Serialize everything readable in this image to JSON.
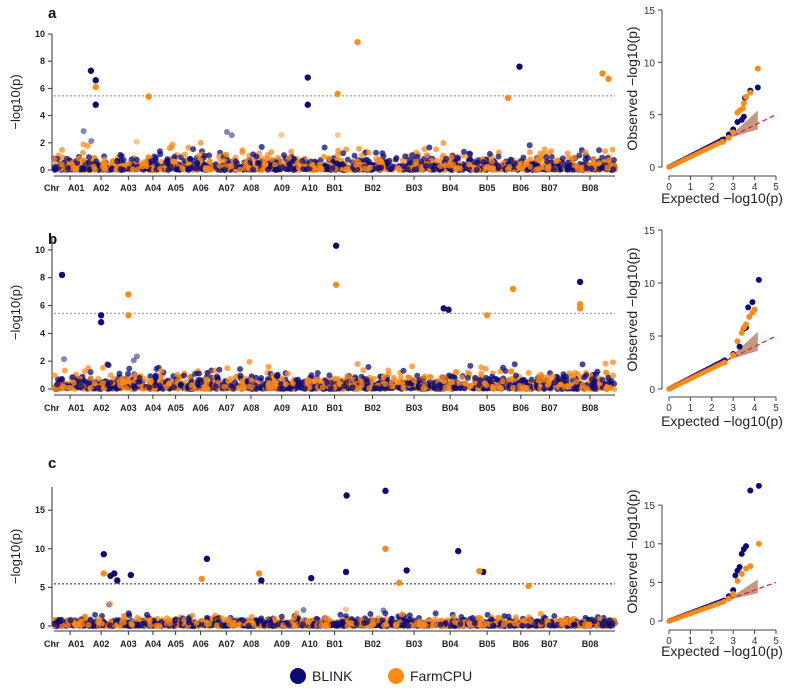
{
  "legend": {
    "blink": "BLINK",
    "farmcpu": "FarmCPU"
  },
  "colors": {
    "blink": "#0b0b78",
    "farmcpu": "#ff8a14",
    "threshold": "#555555",
    "qq_line": "#e02020",
    "qq_band": "#a0522d"
  },
  "chart_data": [
    {
      "panel": "a",
      "type": "scatter",
      "subtype": "manhattan",
      "ylabel": "−log10(p)",
      "chr_axis_label": "Chr",
      "ylim": [
        0,
        10
      ],
      "yticks": [
        0,
        2,
        4,
        6,
        8,
        10
      ],
      "threshold": 5.45,
      "chromosomes": [
        [
          "A01",
          6
        ],
        [
          "A02",
          5
        ],
        [
          "A03",
          4.6
        ],
        [
          "A04",
          4
        ],
        [
          "A05",
          3.9
        ],
        [
          "A06",
          4.8
        ],
        [
          "A07",
          4.3
        ],
        [
          "A08",
          4.3
        ],
        [
          "A09",
          6.6
        ],
        [
          "A10",
          3.2
        ],
        [
          "B01",
          5.6
        ],
        [
          "B02",
          8
        ],
        [
          "B03",
          6.9
        ],
        [
          "B04",
          6
        ],
        [
          "B05",
          7.2
        ],
        [
          "B06",
          4.8
        ],
        [
          "B07",
          5.3
        ],
        [
          "B08",
          9.3
        ]
      ],
      "significant": {
        "blink": [
          [
            "A02",
            0.12,
            7.3
          ],
          [
            "A02",
            0.3,
            6.6
          ],
          [
            "A02",
            0.3,
            4.8
          ],
          [
            "A10",
            0.4,
            6.8
          ],
          [
            "A10",
            0.4,
            4.8
          ],
          [
            "B06",
            0.45,
            7.6
          ]
        ],
        "farmcpu": [
          [
            "A02",
            0.3,
            6.1
          ],
          [
            "A04",
            0.3,
            5.4
          ],
          [
            "B01",
            0.6,
            5.6
          ],
          [
            "B02",
            0.15,
            9.4
          ],
          [
            "B06",
            0.0,
            5.3
          ],
          [
            "B08",
            0.75,
            7.1
          ],
          [
            "B08",
            0.87,
            6.7
          ]
        ]
      },
      "qq": {
        "xlabel": "Expected −log10(p)",
        "ylabel": "Observed −log10(p)",
        "xlim": [
          0,
          5
        ],
        "ylim": [
          0,
          15
        ],
        "xticks": [
          0,
          1,
          2,
          3,
          4,
          5
        ],
        "yticks": [
          0,
          5,
          10,
          15
        ],
        "blink_tail": [
          [
            2.5,
            2.6
          ],
          [
            2.8,
            3.1
          ],
          [
            3.0,
            3.6
          ],
          [
            3.2,
            4.3
          ],
          [
            3.4,
            4.5
          ],
          [
            3.5,
            4.8
          ],
          [
            3.55,
            6.6
          ],
          [
            3.8,
            7.3
          ],
          [
            4.15,
            7.6
          ]
        ],
        "farmcpu_tail": [
          [
            2.5,
            2.4
          ],
          [
            2.8,
            2.8
          ],
          [
            3.0,
            3.3
          ],
          [
            3.2,
            5.2
          ],
          [
            3.3,
            5.4
          ],
          [
            3.45,
            5.6
          ],
          [
            3.5,
            6.1
          ],
          [
            3.6,
            6.7
          ],
          [
            3.8,
            7.1
          ],
          [
            4.15,
            9.4
          ]
        ]
      }
    },
    {
      "panel": "b",
      "type": "scatter",
      "subtype": "manhattan",
      "ylabel": "−log10(p)",
      "chr_axis_label": "Chr",
      "ylim": [
        0,
        11
      ],
      "yticks": [
        0,
        2,
        4,
        6,
        8,
        10
      ],
      "threshold": 5.45,
      "chromosomes": [
        [
          "A01",
          6
        ],
        [
          "A02",
          5
        ],
        [
          "A03",
          4.6
        ],
        [
          "A04",
          4
        ],
        [
          "A05",
          3.9
        ],
        [
          "A06",
          4.8
        ],
        [
          "A07",
          4.3
        ],
        [
          "A08",
          4.3
        ],
        [
          "A09",
          6.6
        ],
        [
          "A10",
          3.2
        ],
        [
          "B01",
          5.6
        ],
        [
          "B02",
          8
        ],
        [
          "B03",
          6.9
        ],
        [
          "B04",
          6
        ],
        [
          "B05",
          7.2
        ],
        [
          "B06",
          4.8
        ],
        [
          "B07",
          5.3
        ],
        [
          "B08",
          9.3
        ]
      ],
      "significant": {
        "blink": [
          [
            "A01",
            0.25,
            8.2
          ],
          [
            "A02",
            0.5,
            5.3
          ],
          [
            "A02",
            0.5,
            4.8
          ],
          [
            "B01",
            0.55,
            10.3
          ],
          [
            "B04",
            0.3,
            5.8
          ],
          [
            "B04",
            0.45,
            5.7
          ],
          [
            "B08",
            0.3,
            7.7
          ]
        ],
        "farmcpu": [
          [
            "A03",
            0.5,
            6.8
          ],
          [
            "A03",
            0.5,
            5.3
          ],
          [
            "B01",
            0.55,
            7.5
          ],
          [
            "B05",
            0.5,
            5.3
          ],
          [
            "B06",
            0.2,
            7.2
          ],
          [
            "B08",
            0.3,
            6.1
          ],
          [
            "B08",
            0.3,
            5.8
          ]
        ]
      },
      "qq": {
        "xlabel": "Expected −log10(p)",
        "ylabel": "Observed −log10(p)",
        "xlim": [
          0,
          5
        ],
        "ylim": [
          0,
          15
        ],
        "xticks": [
          0,
          1,
          2,
          3,
          4,
          5
        ],
        "yticks": [
          0,
          5,
          10,
          15
        ],
        "blink_tail": [
          [
            2.6,
            2.7
          ],
          [
            3.0,
            3.3
          ],
          [
            3.3,
            4.0
          ],
          [
            3.5,
            5.7
          ],
          [
            3.6,
            5.8
          ],
          [
            3.7,
            7.7
          ],
          [
            3.9,
            8.2
          ],
          [
            4.2,
            10.3
          ]
        ],
        "farmcpu_tail": [
          [
            2.6,
            2.5
          ],
          [
            3.0,
            3.2
          ],
          [
            3.2,
            4.5
          ],
          [
            3.4,
            5.3
          ],
          [
            3.5,
            5.8
          ],
          [
            3.6,
            6.1
          ],
          [
            3.75,
            6.8
          ],
          [
            3.9,
            7.2
          ],
          [
            4.0,
            7.5
          ]
        ]
      }
    },
    {
      "panel": "c",
      "type": "scatter",
      "subtype": "manhattan",
      "ylabel": "−log10(p)",
      "chr_axis_label": "Chr",
      "ylim": [
        0,
        18
      ],
      "yticks": [
        0,
        5,
        10,
        15
      ],
      "threshold": 5.45,
      "chromosomes": [
        [
          "A01",
          6
        ],
        [
          "A02",
          5
        ],
        [
          "A03",
          4.6
        ],
        [
          "A04",
          4
        ],
        [
          "A05",
          3.9
        ],
        [
          "A06",
          4.8
        ],
        [
          "A07",
          4.3
        ],
        [
          "A08",
          4.3
        ],
        [
          "A09",
          6.6
        ],
        [
          "A10",
          3.2
        ],
        [
          "B01",
          5.6
        ],
        [
          "B02",
          8
        ],
        [
          "B03",
          6.9
        ],
        [
          "B04",
          6
        ],
        [
          "B05",
          7.2
        ],
        [
          "B06",
          4.8
        ],
        [
          "B07",
          5.3
        ],
        [
          "B08",
          9.3
        ]
      ],
      "significant": {
        "blink": [
          [
            "A02",
            0.6,
            9.3
          ],
          [
            "A02",
            0.85,
            6.5
          ],
          [
            "A02",
            0.99,
            6.8
          ],
          [
            "A03",
            0.05,
            5.9
          ],
          [
            "A03",
            0.6,
            6.6
          ],
          [
            "A06",
            0.75,
            8.7
          ],
          [
            "A08",
            0.95,
            5.9
          ],
          [
            "A10",
            0.6,
            6.2
          ],
          [
            "B01",
            0.9,
            16.9
          ],
          [
            "B01",
            0.88,
            7.0
          ],
          [
            "B02",
            0.8,
            17.5
          ],
          [
            "B03",
            0.3,
            7.2
          ],
          [
            "B04",
            0.75,
            9.7
          ],
          [
            "B05",
            0.4,
            7.0
          ]
        ],
        "farmcpu": [
          [
            "A02",
            0.6,
            6.8
          ],
          [
            "A06",
            0.55,
            6.1
          ],
          [
            "A08",
            0.85,
            6.8
          ],
          [
            "B02",
            0.8,
            10.0
          ],
          [
            "B03",
            0.1,
            5.6
          ],
          [
            "B05",
            0.3,
            7.1
          ],
          [
            "B06",
            0.8,
            5.2
          ]
        ]
      },
      "qq": {
        "xlabel": "Expected −log10(p)",
        "ylabel": "Observed −log10(p)",
        "xlim": [
          0,
          5
        ],
        "ylim": [
          0,
          18
        ],
        "xticks": [
          0,
          1,
          2,
          3,
          4,
          5
        ],
        "yticks": [
          0,
          5,
          10,
          15
        ],
        "blink_tail": [
          [
            2.8,
            3.2
          ],
          [
            3.0,
            4.0
          ],
          [
            3.1,
            5.9
          ],
          [
            3.2,
            6.5
          ],
          [
            3.3,
            7.0
          ],
          [
            3.4,
            8.7
          ],
          [
            3.5,
            9.3
          ],
          [
            3.6,
            9.7
          ],
          [
            3.8,
            16.9
          ],
          [
            4.2,
            17.5
          ]
        ],
        "farmcpu_tail": [
          [
            2.8,
            2.9
          ],
          [
            3.0,
            3.5
          ],
          [
            3.2,
            5.2
          ],
          [
            3.4,
            6.1
          ],
          [
            3.6,
            6.8
          ],
          [
            3.8,
            7.1
          ],
          [
            4.2,
            10.0
          ]
        ]
      }
    }
  ]
}
